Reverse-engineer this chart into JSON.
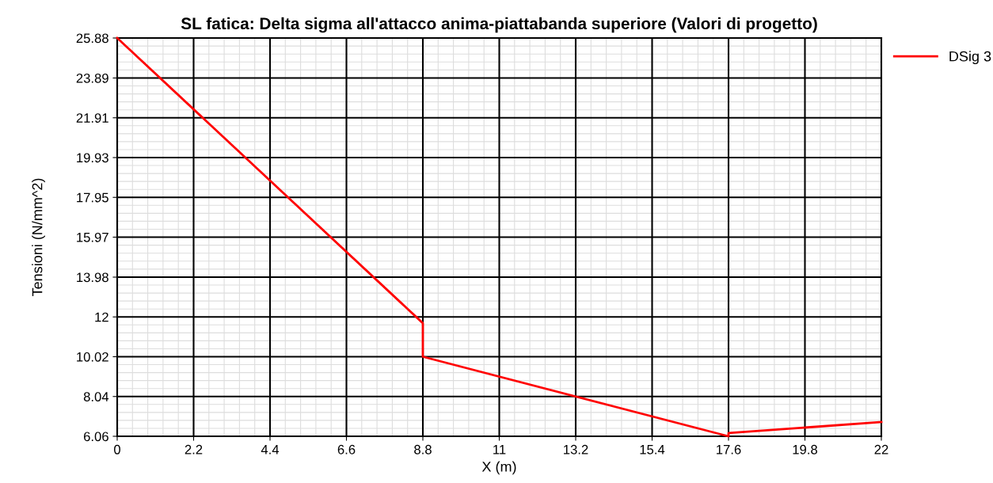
{
  "chart_data": {
    "type": "line",
    "title": "SL fatica: Delta sigma all'attacco anima-piattabanda superiore (Valori di progetto)",
    "xlabel": "X (m)",
    "ylabel": "Tensioni (N/mm^2)",
    "series": [
      {
        "name": "DSig 3",
        "color": "#ff0000",
        "x": [
          0,
          8.8,
          8.8,
          17.6,
          17.6,
          22
        ],
        "values": [
          25.88,
          11.69,
          10.02,
          6.06,
          6.22,
          6.77
        ]
      }
    ],
    "xlim": [
      0,
      22
    ],
    "xticks": [
      0,
      2.2,
      4.4,
      6.6,
      8.8,
      11,
      13.2,
      15.4,
      17.6,
      19.8,
      22
    ],
    "ylim": [
      6.06,
      25.88
    ],
    "yticks": [
      6.06,
      8.04,
      10.02,
      12,
      13.98,
      15.97,
      17.95,
      19.93,
      21.91,
      23.89,
      25.88
    ],
    "grid": true,
    "legend": "top right",
    "marker": "none",
    "line_style": "solid"
  }
}
